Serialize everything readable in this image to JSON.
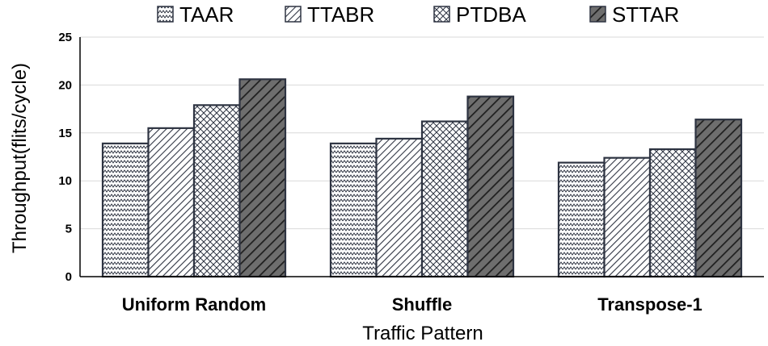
{
  "chart_data": {
    "type": "bar",
    "title": "",
    "xlabel": "Traffic Pattern",
    "ylabel": "Throughput(flits/cycle)",
    "ylim": [
      0,
      25
    ],
    "yticks": [
      "0",
      "5",
      "10",
      "15",
      "20",
      "25"
    ],
    "grid": "horizontal",
    "legend_position": "top",
    "categories": [
      "Uniform Random",
      "Shuffle",
      "Transpose-1"
    ],
    "series": [
      {
        "name": "TAAR",
        "values": [
          13.9,
          13.9,
          11.9
        ],
        "pattern": "zigzag",
        "fill": "#ffffff"
      },
      {
        "name": "TTABR",
        "values": [
          15.5,
          14.4,
          12.4
        ],
        "pattern": "diag-dense",
        "fill": "#ffffff"
      },
      {
        "name": "PTDBA",
        "values": [
          17.9,
          16.2,
          13.3
        ],
        "pattern": "cross",
        "fill": "#ffffff"
      },
      {
        "name": "STTAR",
        "values": [
          20.6,
          18.8,
          16.4
        ],
        "pattern": "diag-wide",
        "fill": "#6e6e6e"
      }
    ],
    "colors": {
      "stroke": "#2e3442",
      "grid": "#d9d9d9",
      "axis": "#000000"
    }
  }
}
